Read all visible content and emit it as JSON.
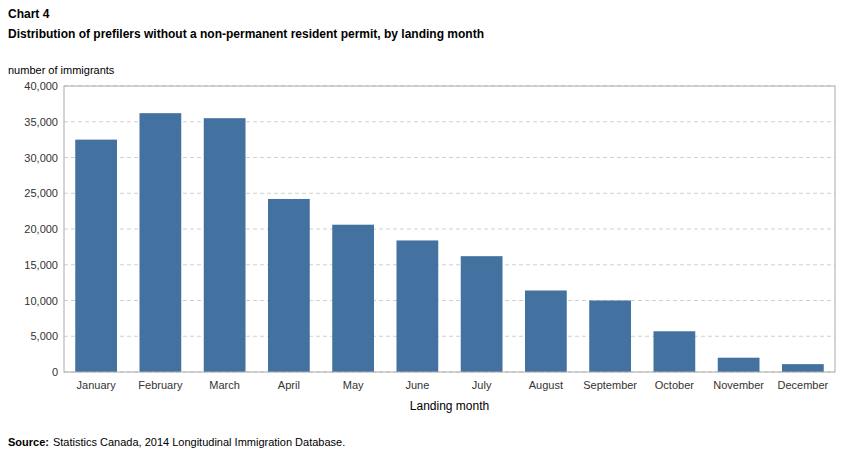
{
  "chart_data": {
    "type": "bar",
    "title": "Distribution  of prefilers  without  a non-permanent  resident permit,  by landing month",
    "annotations": [
      "Chart 4",
      "Source:",
      "Statistics Canada, 2014 Longitudinal Immigration Database."
    ],
    "ylabel": "number of immigrants",
    "xlabel": "Landing month",
    "categories": [
      "January",
      "February",
      "March",
      "April",
      "May",
      "June",
      "July",
      "August",
      "September",
      "October",
      "November",
      "December"
    ],
    "values": [
      32500,
      36200,
      35500,
      24200,
      20600,
      18400,
      16200,
      11400,
      10000,
      5700,
      2000,
      1100
    ],
    "color": "#4472A0",
    "ylim": [
      0,
      40000
    ],
    "yticks": [
      0,
      {
        "value": 5000,
        "label": "5,000"
      },
      {
        "value": 10000,
        "label": "10,000"
      },
      {
        "value": 15000,
        "label": "15,000"
      },
      {
        "value": 20000,
        "label": "20,000"
      },
      {
        "value": 25000,
        "label": "25,000"
      },
      {
        "value": 30000,
        "label": "30,000"
      },
      {
        "value": 35000,
        "label": "35,000"
      },
      {
        "value": 40000,
        "label": "40,000"
      }
    ],
    "grid": true
  }
}
